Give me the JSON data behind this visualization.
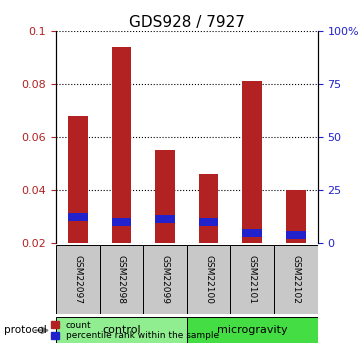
{
  "title": "GDS928 / 7927",
  "samples": [
    "GSM22097",
    "GSM22098",
    "GSM22099",
    "GSM22100",
    "GSM22101",
    "GSM22102"
  ],
  "count_values": [
    0.068,
    0.094,
    0.055,
    0.046,
    0.081,
    0.04
  ],
  "percentile_values": [
    0.03,
    0.028,
    0.029,
    0.028,
    0.024,
    0.023
  ],
  "percentile_blue_height": [
    0.003,
    0.003,
    0.003,
    0.003,
    0.003,
    0.003
  ],
  "bar_bottom": 0.02,
  "ylim_left": [
    0.02,
    0.1
  ],
  "ylim_right": [
    0,
    100
  ],
  "yticks_left": [
    0.02,
    0.04,
    0.06,
    0.08,
    0.1
  ],
  "yticks_right": [
    0,
    25,
    50,
    75,
    100
  ],
  "control_group_count": 3,
  "microgravity_group_count": 3,
  "control_label": "control",
  "microgravity_label": "microgravity",
  "protocol_label": "protocol",
  "legend_count_label": "count",
  "legend_percentile_label": "percentile rank within the sample",
  "bar_color_red": "#B22222",
  "bar_color_blue": "#2222CC",
  "control_bg": "#90EE90",
  "microgravity_bg": "#44DD44",
  "sample_bg": "#C8C8C8",
  "title_fontsize": 11,
  "tick_fontsize": 8,
  "bar_width": 0.45
}
